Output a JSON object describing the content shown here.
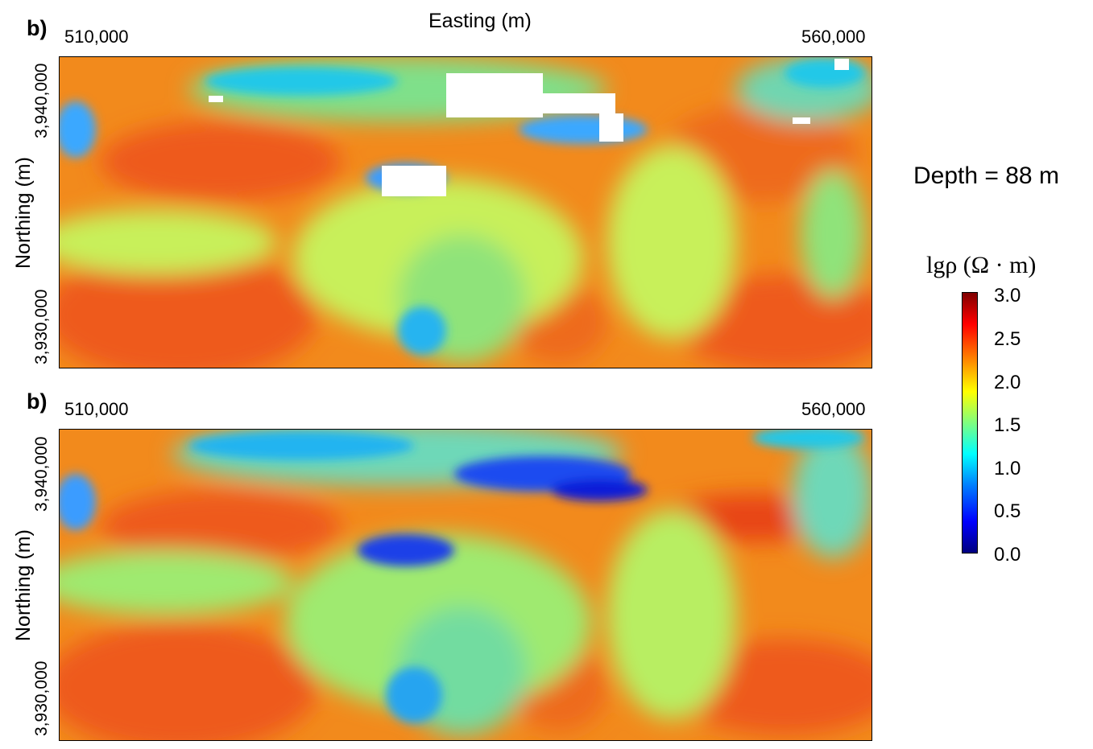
{
  "figure": {
    "top_panel": {
      "label": "b)",
      "x_title": "Easting (m)",
      "x_ticks": [
        "510,000",
        "560,000"
      ],
      "y_title": "Northing (m)",
      "y_ticks": [
        "3,940,000",
        "3,930,000"
      ]
    },
    "bottom_panel": {
      "label": "b)",
      "x_ticks": [
        "510,000",
        "560,000"
      ],
      "y_title": "Northing (m)",
      "y_ticks": [
        "3,940,000",
        "3,930,000"
      ]
    },
    "depth_label": "Depth = 88 m",
    "colorbar": {
      "title": "lgρ (Ω · m)",
      "ticks": [
        "3.0",
        "2.5",
        "2.0",
        "1.5",
        "1.0",
        "0.5",
        "0.0"
      ]
    }
  },
  "chart_data": [
    {
      "type": "heatmap",
      "title": "",
      "xlabel": "Easting (m)",
      "ylabel": "Northing (m)",
      "x_ticks": [
        510000,
        560000
      ],
      "y_ticks": [
        3940000,
        3930000
      ],
      "colorbar": {
        "label": "lgρ (Ω · m)",
        "range": [
          0.0,
          3.0
        ],
        "colormap": "jet"
      },
      "depth": "88 m"
    },
    {
      "type": "heatmap",
      "title": "",
      "xlabel": "",
      "ylabel": "Northing (m)",
      "x_ticks": [
        510000,
        560000
      ],
      "y_ticks": [
        3940000,
        3930000
      ],
      "colorbar": {
        "label": "lgρ (Ω · m)",
        "range": [
          0.0,
          3.0
        ],
        "colormap": "jet"
      },
      "depth": "88 m"
    }
  ],
  "colors": {
    "jet": [
      "#00007f",
      "#0000ff",
      "#007fff",
      "#00ffff",
      "#7fff7f",
      "#ffff00",
      "#ff7f00",
      "#ff0000",
      "#7f0000"
    ]
  }
}
